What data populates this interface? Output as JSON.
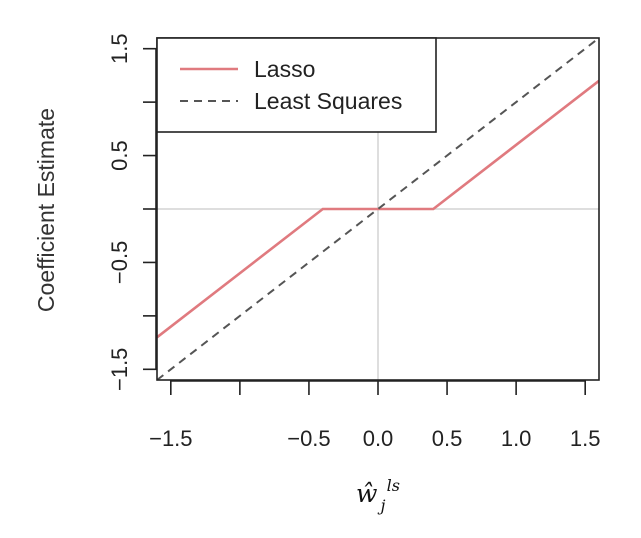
{
  "chart_data": {
    "type": "line",
    "title": "",
    "ylabel": "Coefficient Estimate",
    "xlabel": {
      "base": "ŵ",
      "subscript": "j",
      "superscript": "ls"
    },
    "xlim": [
      -1.6,
      1.6
    ],
    "ylim": [
      -1.6,
      1.6
    ],
    "x_ticks": [
      -1.5,
      -1.0,
      -0.5,
      0.0,
      0.5,
      1.0,
      1.5
    ],
    "x_tick_labels": [
      "-1.5",
      "",
      "-0.5",
      "0.0",
      "0.5",
      "1.0",
      "1.5"
    ],
    "y_ticks": [
      -1.5,
      -1.0,
      -0.5,
      0.0,
      0.5,
      1.0,
      1.5
    ],
    "y_tick_labels": [
      "-1.5",
      "",
      "-0.5",
      "",
      "0.5",
      "",
      "1.5"
    ],
    "reference_lines": {
      "x": 0,
      "y": 0,
      "color": "#d3d3d3"
    },
    "legend_position": "top-left",
    "series": [
      {
        "name": "Lasso",
        "style": "solid",
        "color": "#e07a7f",
        "x": [
          -1.6,
          -0.4,
          0.4,
          1.6
        ],
        "y": [
          -1.2,
          0.0,
          0.0,
          1.2
        ]
      },
      {
        "name": "Least Squares",
        "style": "dashed",
        "color": "#555555",
        "x": [
          -1.6,
          1.6
        ],
        "y": [
          -1.6,
          1.6
        ]
      }
    ]
  }
}
